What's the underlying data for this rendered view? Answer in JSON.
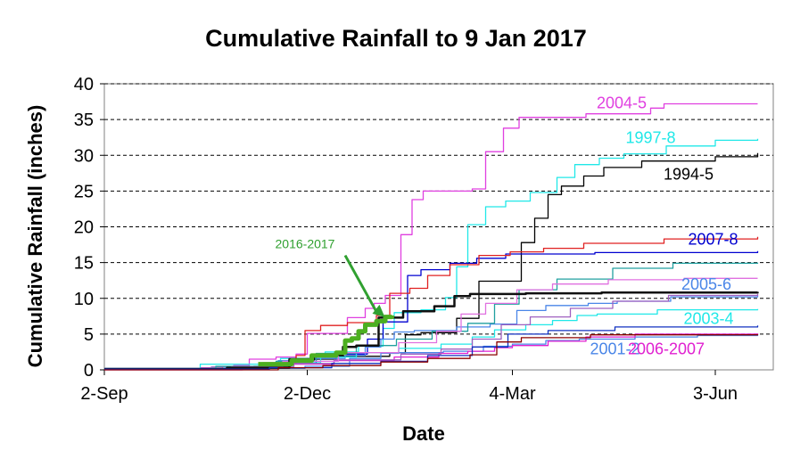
{
  "chart_data": {
    "type": "line",
    "title": "Cumulative Rainfall to 9 Jan 2017",
    "xlabel": "Date",
    "ylabel": "Cumulative Rainfall (inches)",
    "ylim": [
      0,
      40
    ],
    "yticks": [
      0,
      5,
      10,
      15,
      20,
      25,
      30,
      35,
      40
    ],
    "xlim": [
      "2016-09-02",
      "2017-06-24"
    ],
    "xticks": [
      "2-Sep",
      "2-Dec",
      "4-Mar",
      "3-Jun"
    ],
    "xtick_dates": [
      "2016-09-02",
      "2016-12-02",
      "2017-03-04",
      "2017-06-03"
    ],
    "grid": "horizontal dashed",
    "annotation": {
      "text": "2016-2017",
      "arrow_to": [
        "2017-01-05",
        7.5
      ]
    },
    "series": [
      {
        "name": "2004-5",
        "color": "#e040e0",
        "label_at": [
          "2017-04-22",
          36.6
        ],
        "points": [
          [
            "2016-09-02",
            0.1
          ],
          [
            "2016-10-15",
            0.3
          ],
          [
            "2016-10-30",
            0.6
          ],
          [
            "2016-11-06",
            1.5
          ],
          [
            "2016-11-18",
            1.8
          ],
          [
            "2016-11-27",
            2.2
          ],
          [
            "2016-12-02",
            5.1
          ],
          [
            "2016-12-20",
            7.3
          ],
          [
            "2016-12-28",
            8.6
          ],
          [
            "2017-01-01",
            9.3
          ],
          [
            "2017-01-06",
            10.4
          ],
          [
            "2017-01-13",
            18.9
          ],
          [
            "2017-01-18",
            23.8
          ],
          [
            "2017-01-23",
            25.0
          ],
          [
            "2017-02-14",
            25.3
          ],
          [
            "2017-02-20",
            30.5
          ],
          [
            "2017-02-28",
            33.8
          ],
          [
            "2017-03-07",
            35.3
          ],
          [
            "2017-04-06",
            35.8
          ],
          [
            "2017-05-05",
            36.6
          ],
          [
            "2017-05-11",
            37.2
          ],
          [
            "2017-06-22",
            37.2
          ]
        ]
      },
      {
        "name": "1997-8",
        "color": "#20e8e8",
        "label_at": [
          "2017-05-05",
          31.7
        ],
        "points": [
          [
            "2016-09-02",
            0.2
          ],
          [
            "2016-10-15",
            0.8
          ],
          [
            "2016-11-20",
            1.6
          ],
          [
            "2016-12-10",
            2.5
          ],
          [
            "2016-12-25",
            3.3
          ],
          [
            "2017-01-05",
            5.8
          ],
          [
            "2017-01-10",
            8.0
          ],
          [
            "2017-01-22",
            8.4
          ],
          [
            "2017-02-02",
            10.1
          ],
          [
            "2017-02-07",
            14.4
          ],
          [
            "2017-02-12",
            20.3
          ],
          [
            "2017-02-20",
            22.8
          ],
          [
            "2017-03-01",
            23.6
          ],
          [
            "2017-03-12",
            24.8
          ],
          [
            "2017-03-24",
            26.9
          ],
          [
            "2017-04-01",
            28.7
          ],
          [
            "2017-04-12",
            29.6
          ],
          [
            "2017-04-23",
            30.2
          ],
          [
            "2017-05-12",
            31.3
          ],
          [
            "2017-06-03",
            32.1
          ],
          [
            "2017-06-22",
            32.3
          ]
        ]
      },
      {
        "name": "1994-5",
        "color": "#000000",
        "label_at": [
          "2017-05-22",
          26.6
        ],
        "points": [
          [
            "2016-09-02",
            0.1
          ],
          [
            "2016-11-08",
            0.5
          ],
          [
            "2016-11-25",
            1.3
          ],
          [
            "2016-12-05",
            1.5
          ],
          [
            "2016-12-15",
            1.9
          ],
          [
            "2017-01-08",
            2.4
          ],
          [
            "2017-01-15",
            4.9
          ],
          [
            "2017-01-22",
            5.2
          ],
          [
            "2017-02-07",
            7.2
          ],
          [
            "2017-02-17",
            12.4
          ],
          [
            "2017-03-08",
            17.8
          ],
          [
            "2017-03-14",
            21.2
          ],
          [
            "2017-03-20",
            24.5
          ],
          [
            "2017-03-26",
            25.7
          ],
          [
            "2017-04-05",
            27.1
          ],
          [
            "2017-04-14",
            28.3
          ],
          [
            "2017-05-01",
            29.2
          ],
          [
            "2017-06-03",
            29.8
          ],
          [
            "2017-06-22",
            30.3
          ]
        ]
      },
      {
        "name": "2007-8",
        "color": "#0000d0",
        "label_at": [
          "2017-06-02",
          17.5
        ],
        "points": [
          [
            "2016-09-02",
            0.2
          ],
          [
            "2016-11-01",
            0.4
          ],
          [
            "2016-11-20",
            1.0
          ],
          [
            "2016-12-06",
            2.1
          ],
          [
            "2016-12-16",
            2.2
          ],
          [
            "2016-12-29",
            4.3
          ],
          [
            "2017-01-05",
            6.7
          ],
          [
            "2017-01-16",
            13.2
          ],
          [
            "2017-01-22",
            14.0
          ],
          [
            "2017-02-04",
            14.9
          ],
          [
            "2017-02-16",
            15.6
          ],
          [
            "2017-03-01",
            16.2
          ],
          [
            "2017-03-16",
            16.2
          ],
          [
            "2017-04-10",
            16.4
          ],
          [
            "2017-06-22",
            16.6
          ]
        ]
      },
      {
        "name": "2005-6",
        "color": "#4a86e8",
        "label_at": [
          "2017-05-30",
          11.2
        ],
        "points": [
          [
            "2016-09-02",
            0.1
          ],
          [
            "2016-10-25",
            0.3
          ],
          [
            "2016-11-19",
            1.3
          ],
          [
            "2016-12-02",
            1.6
          ],
          [
            "2016-12-19",
            2.0
          ],
          [
            "2016-12-28",
            3.2
          ],
          [
            "2017-01-04",
            4.3
          ],
          [
            "2017-01-10",
            5.3
          ],
          [
            "2017-01-19",
            5.5
          ],
          [
            "2017-02-07",
            6.0
          ],
          [
            "2017-02-22",
            6.4
          ],
          [
            "2017-03-06",
            8.3
          ],
          [
            "2017-03-19",
            9.0
          ],
          [
            "2017-04-07",
            9.3
          ],
          [
            "2017-04-20",
            9.6
          ],
          [
            "2017-05-14",
            10.2
          ],
          [
            "2017-06-22",
            10.4
          ]
        ]
      },
      {
        "name": "2003-4",
        "color": "#20e8e8",
        "label_at": [
          "2017-05-31",
          6.4
        ],
        "points": [
          [
            "2016-09-02",
            0.1
          ],
          [
            "2016-10-20",
            0.3
          ],
          [
            "2016-11-19",
            1.0
          ],
          [
            "2016-12-08",
            1.8
          ],
          [
            "2016-12-24",
            2.4
          ],
          [
            "2017-01-12",
            3.0
          ],
          [
            "2017-01-31",
            3.6
          ],
          [
            "2017-02-14",
            4.6
          ],
          [
            "2017-02-24",
            5.6
          ],
          [
            "2017-03-10",
            6.3
          ],
          [
            "2017-03-22",
            6.9
          ],
          [
            "2017-04-02",
            7.6
          ],
          [
            "2017-04-11",
            7.8
          ],
          [
            "2017-05-08",
            8.4
          ],
          [
            "2017-06-22",
            8.5
          ]
        ]
      },
      {
        "name": "2001-2",
        "color": "#4a86e8",
        "label_at": [
          "2017-04-19",
          2.2
        ],
        "points": [
          [
            "2016-09-02",
            0.1
          ],
          [
            "2016-11-01",
            0.2
          ],
          [
            "2016-12-01",
            0.5
          ],
          [
            "2016-12-21",
            1.6
          ],
          [
            "2017-01-04",
            2.3
          ],
          [
            "2017-01-12",
            2.4
          ],
          [
            "2017-02-01",
            2.6
          ],
          [
            "2017-02-19",
            3.3
          ],
          [
            "2017-03-04",
            3.6
          ],
          [
            "2017-03-19",
            4.1
          ],
          [
            "2017-04-03",
            4.3
          ],
          [
            "2017-04-28",
            4.6
          ],
          [
            "2017-05-26",
            4.8
          ],
          [
            "2017-06-22",
            4.9
          ]
        ]
      },
      {
        "name": "2006-2007",
        "color": "#e020d0",
        "label_at": [
          "2017-05-12",
          2.2
        ],
        "points": [
          [
            "2016-09-02",
            0.0
          ],
          [
            "2016-11-03",
            0.3
          ],
          [
            "2016-11-25",
            0.8
          ],
          [
            "2016-12-14",
            1.3
          ],
          [
            "2017-01-10",
            1.8
          ],
          [
            "2017-01-30",
            2.3
          ],
          [
            "2017-02-12",
            2.6
          ],
          [
            "2017-02-24",
            3.1
          ],
          [
            "2017-03-04",
            3.4
          ],
          [
            "2017-03-20",
            4.0
          ],
          [
            "2017-04-06",
            4.6
          ],
          [
            "2017-04-28",
            5.0
          ],
          [
            "2017-06-22",
            5.1
          ]
        ]
      },
      {
        "name": "",
        "color": "#e02020",
        "label_at": null,
        "points": [
          [
            "2016-09-02",
            0.2
          ],
          [
            "2016-10-25",
            0.4
          ],
          [
            "2016-11-12",
            1.0
          ],
          [
            "2016-11-27",
            2.0
          ],
          [
            "2016-12-01",
            5.5
          ],
          [
            "2016-12-08",
            6.2
          ],
          [
            "2016-12-20",
            6.6
          ],
          [
            "2017-01-02",
            7.6
          ],
          [
            "2017-01-08",
            10.7
          ],
          [
            "2017-01-17",
            11.4
          ],
          [
            "2017-01-25",
            13.2
          ],
          [
            "2017-02-04",
            14.7
          ],
          [
            "2017-02-17",
            16.0
          ],
          [
            "2017-03-03",
            16.5
          ],
          [
            "2017-03-18",
            17.0
          ],
          [
            "2017-04-05",
            17.7
          ],
          [
            "2017-05-11",
            18.3
          ],
          [
            "2017-06-22",
            18.6
          ]
        ]
      },
      {
        "name": "",
        "color": "#a060c0",
        "label_at": null,
        "points": [
          [
            "2016-09-02",
            0.1
          ],
          [
            "2016-10-20",
            0.4
          ],
          [
            "2016-11-26",
            0.9
          ],
          [
            "2016-12-14",
            1.4
          ],
          [
            "2017-01-13",
            2.2
          ],
          [
            "2017-01-31",
            2.9
          ],
          [
            "2017-02-14",
            4.3
          ],
          [
            "2017-02-27",
            6.3
          ],
          [
            "2017-03-12",
            7.4
          ],
          [
            "2017-03-30",
            8.6
          ],
          [
            "2017-04-18",
            9.6
          ],
          [
            "2017-05-13",
            10.4
          ],
          [
            "2017-06-22",
            10.6
          ]
        ]
      },
      {
        "name": "",
        "color": "#20a0a0",
        "label_at": null,
        "points": [
          [
            "2016-09-02",
            0.2
          ],
          [
            "2016-10-22",
            0.5
          ],
          [
            "2016-11-18",
            1.2
          ],
          [
            "2016-12-06",
            2.3
          ],
          [
            "2016-12-24",
            3.4
          ],
          [
            "2017-01-11",
            4.3
          ],
          [
            "2017-01-27",
            5.4
          ],
          [
            "2017-02-12",
            6.5
          ],
          [
            "2017-02-24",
            9.2
          ],
          [
            "2017-03-07",
            11.2
          ],
          [
            "2017-03-24",
            12.7
          ],
          [
            "2017-04-18",
            14.2
          ],
          [
            "2017-05-15",
            14.9
          ],
          [
            "2017-06-22",
            15.0
          ]
        ]
      },
      {
        "name": "",
        "color": "#e070e0",
        "label_at": null,
        "points": [
          [
            "2016-09-02",
            0.1
          ],
          [
            "2016-10-29",
            0.4
          ],
          [
            "2016-11-21",
            1.2
          ],
          [
            "2016-12-16",
            2.4
          ],
          [
            "2017-01-12",
            3.8
          ],
          [
            "2017-01-29",
            5.4
          ],
          [
            "2017-02-09",
            7.8
          ],
          [
            "2017-02-20",
            9.3
          ],
          [
            "2017-03-06",
            11.2
          ],
          [
            "2017-03-22",
            12.0
          ],
          [
            "2017-04-16",
            12.6
          ],
          [
            "2017-05-20",
            12.8
          ],
          [
            "2017-06-22",
            12.8
          ]
        ]
      },
      {
        "name": "",
        "color": "#101010",
        "label_at": null,
        "points": [
          [
            "2016-09-02",
            0.1
          ],
          [
            "2016-10-27",
            0.3
          ],
          [
            "2016-11-24",
            1.5
          ],
          [
            "2016-12-05",
            2.1
          ],
          [
            "2016-12-18",
            3.2
          ],
          [
            "2016-12-24",
            3.4
          ],
          [
            "2017-01-03",
            7.3
          ],
          [
            "2017-01-14",
            8.2
          ],
          [
            "2017-01-28",
            8.9
          ],
          [
            "2017-02-06",
            10.3
          ],
          [
            "2017-02-13",
            10.6
          ],
          [
            "2017-03-10",
            10.7
          ],
          [
            "2017-04-13",
            10.8
          ],
          [
            "2017-06-22",
            10.9
          ]
        ],
        "width": 2.5
      },
      {
        "name": "",
        "color": "#1030c0",
        "label_at": null,
        "points": [
          [
            "2016-09-02",
            0.1
          ],
          [
            "2016-11-15",
            0.3
          ],
          [
            "2016-12-13",
            0.9
          ],
          [
            "2017-01-04",
            1.2
          ],
          [
            "2017-01-25",
            2.0
          ],
          [
            "2017-02-14",
            3.2
          ],
          [
            "2017-03-02",
            5.0
          ],
          [
            "2017-03-20",
            5.5
          ],
          [
            "2017-04-19",
            6.0
          ],
          [
            "2017-06-22",
            6.2
          ]
        ]
      },
      {
        "name": "",
        "color": "#8b0000",
        "label_at": null,
        "points": [
          [
            "2016-09-02",
            0.0
          ],
          [
            "2016-11-19",
            0.3
          ],
          [
            "2016-12-09",
            0.6
          ],
          [
            "2017-01-04",
            1.1
          ],
          [
            "2017-01-25",
            1.6
          ],
          [
            "2017-02-13",
            2.1
          ],
          [
            "2017-02-25",
            3.9
          ],
          [
            "2017-03-08",
            4.5
          ],
          [
            "2017-04-08",
            4.9
          ],
          [
            "2017-06-22",
            5.0
          ]
        ]
      },
      {
        "name": "2016-2017",
        "color": "#4caf20",
        "label_at": null,
        "width": 5,
        "points": [
          [
            "2016-11-10",
            0.8
          ],
          [
            "2016-11-25",
            1.3
          ],
          [
            "2016-12-04",
            2.0
          ],
          [
            "2016-12-15",
            2.4
          ],
          [
            "2016-12-19",
            4.1
          ],
          [
            "2016-12-22",
            4.4
          ],
          [
            "2016-12-25",
            5.4
          ],
          [
            "2016-12-28",
            6.3
          ],
          [
            "2017-01-02",
            6.8
          ],
          [
            "2017-01-06",
            7.4
          ],
          [
            "2017-01-09",
            7.6
          ]
        ]
      }
    ]
  }
}
